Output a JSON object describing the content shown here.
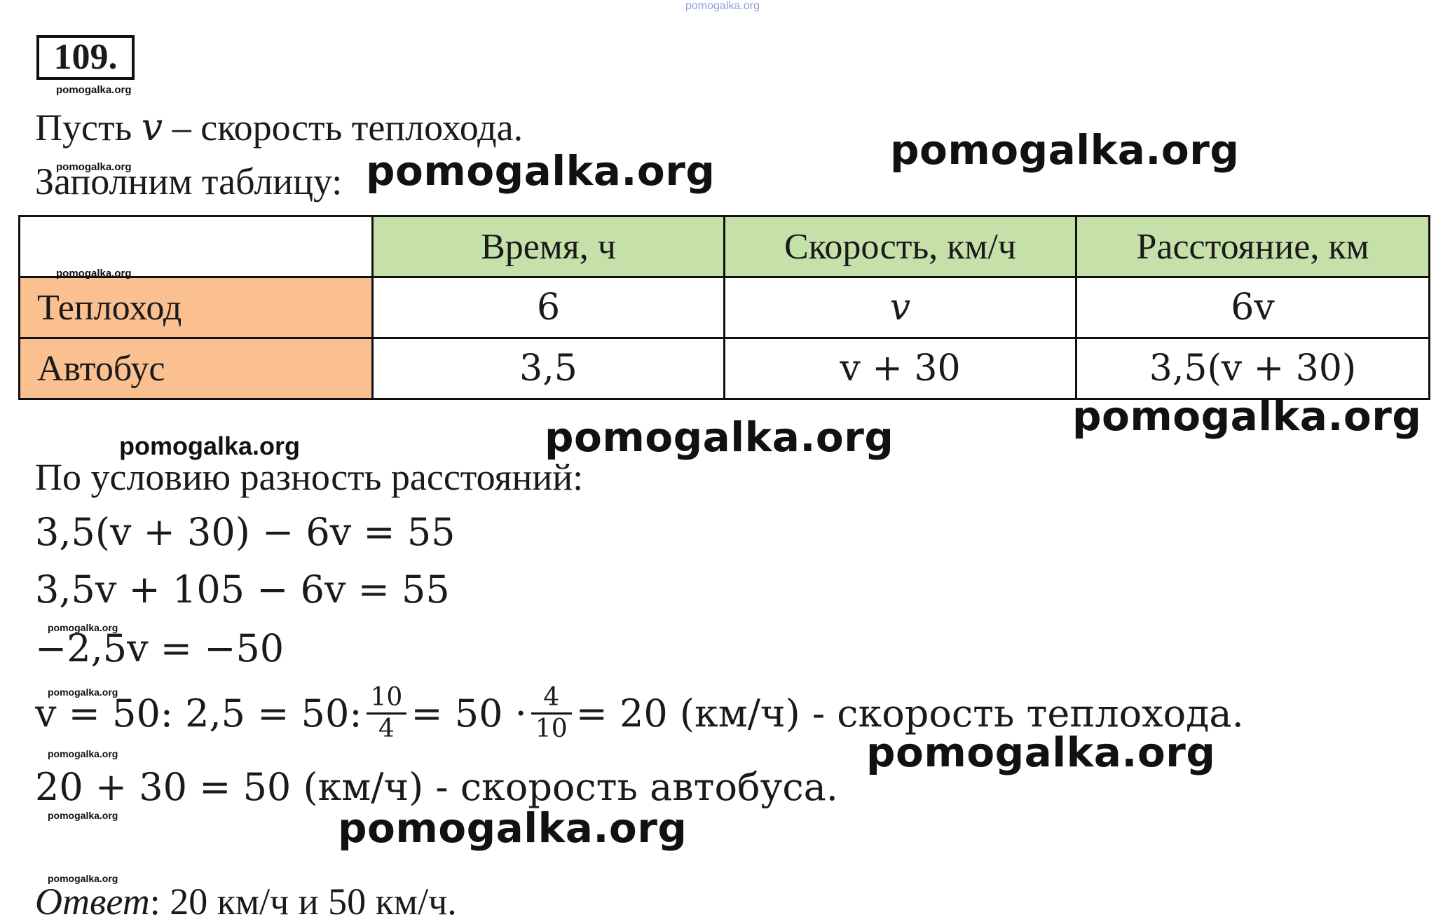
{
  "watermark_top": "pomogalka.org",
  "problem_number": "109.",
  "watermark_small": "pomogalka.org",
  "watermark_big": "pomogalka.org",
  "intro": {
    "prefix": "Пусть ",
    "var": "v",
    "suffix": " – скорость теплохода.",
    "fill_table": "Заполним таблицу:"
  },
  "table": {
    "headers": [
      "",
      "Время, ч",
      "Скорость, км/ч",
      "Расстояние, км"
    ],
    "rows": [
      {
        "label": "Теплоход",
        "time": "6",
        "speed": "v",
        "distance": "6v"
      },
      {
        "label": "Автобус",
        "time": "3,5",
        "speed": "v + 30",
        "distance": "3,5(v + 30)"
      }
    ]
  },
  "solution": {
    "condition": "По условию разность расстояний:",
    "eq1": "3,5(v + 30) − 6v = 55",
    "eq2": "3,5v + 105 − 6v = 55",
    "eq3": "−2,5v = −50",
    "eq4_start": "v = 50: 2,5 = 50:",
    "frac1_num": "10",
    "frac1_den": "4",
    "eq4_mid": "= 50 ·",
    "frac2_num": "4",
    "frac2_den": "10",
    "eq4_end": "= 20 (км/ч) - скорость теплохода.",
    "eq5": "20 + 30 = 50 (км/ч) - скорость автобуса.",
    "answer_label": "Ответ",
    "answer_text": ": 20 км/ч и 50 км/ч."
  }
}
